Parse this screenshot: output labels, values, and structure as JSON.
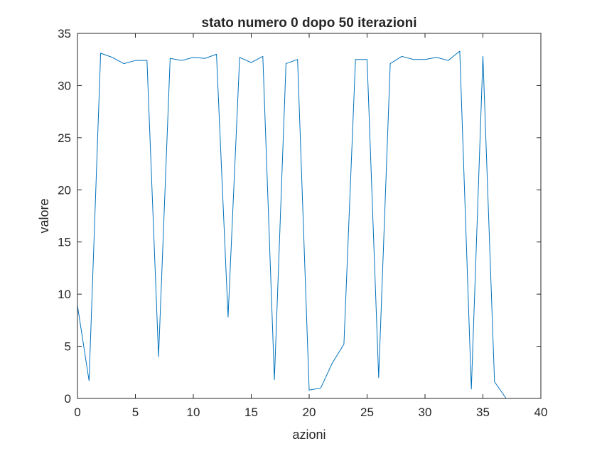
{
  "chart_data": {
    "type": "line",
    "title": "stato numero 0 dopo 50 iterazioni",
    "xlabel": "azioni",
    "ylabel": "valore",
    "xlim": [
      0,
      40
    ],
    "ylim": [
      0,
      35
    ],
    "xticks": [
      "0",
      "5",
      "10",
      "15",
      "20",
      "25",
      "30",
      "35",
      "40"
    ],
    "yticks": [
      "0",
      "5",
      "10",
      "15",
      "20",
      "25",
      "30",
      "35"
    ],
    "grid": false,
    "legend": "none",
    "series": [
      {
        "color": "#0072bd",
        "x": [
          0,
          1,
          2,
          3,
          4,
          5,
          6,
          7,
          8,
          9,
          10,
          11,
          12,
          13,
          14,
          15,
          16,
          17,
          18,
          19,
          20,
          21,
          22,
          23,
          24,
          25,
          26,
          27,
          28,
          29,
          30,
          31,
          32,
          33,
          34,
          35,
          36,
          37
        ],
        "y": [
          8.9,
          1.7,
          33.1,
          32.7,
          32.1,
          32.4,
          32.4,
          4.0,
          32.6,
          32.4,
          32.7,
          32.6,
          33.0,
          7.8,
          32.7,
          32.2,
          32.8,
          1.8,
          32.1,
          32.5,
          0.8,
          1.0,
          3.4,
          5.2,
          32.5,
          32.5,
          2.0,
          32.1,
          32.8,
          32.5,
          32.5,
          32.7,
          32.4,
          33.3,
          0.9,
          32.8,
          1.6,
          0.0
        ]
      }
    ]
  }
}
